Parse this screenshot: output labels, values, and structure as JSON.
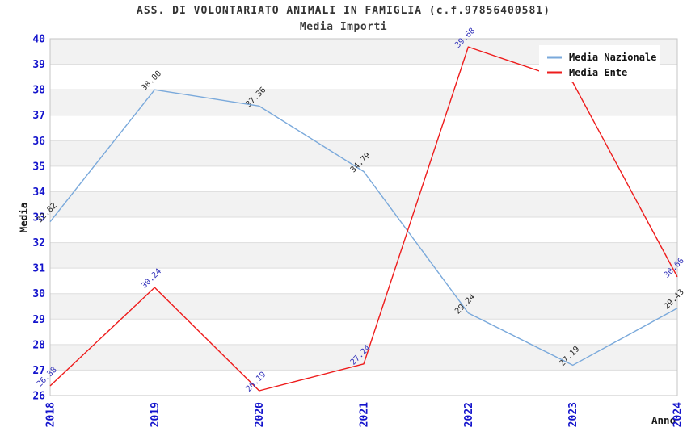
{
  "chart_data": {
    "type": "line",
    "title": "ASS. DI VOLONTARIATO ANIMALI IN FAMIGLIA (c.f.97856400581)",
    "subtitle": "Media Importi",
    "xlabel": "Anno",
    "ylabel": "Media",
    "x_categories": [
      "2018",
      "2019",
      "2020",
      "2021",
      "2022",
      "2023",
      "2024"
    ],
    "ylim": [
      26,
      40
    ],
    "y_ticks": [
      26,
      27,
      28,
      29,
      30,
      31,
      32,
      33,
      34,
      35,
      36,
      37,
      38,
      39,
      40
    ],
    "grid": "alternating horizontal gray bands, gridline each unit",
    "legend_position": "top-right",
    "series": [
      {
        "name": "Media Nazionale",
        "color": "#7aa9db",
        "label_color": "#2a2a2a",
        "values": [
          32.82,
          38.0,
          37.36,
          34.79,
          29.24,
          27.19,
          29.43
        ],
        "point_labels": [
          "32.82",
          "38.00",
          "37.36",
          "34.79",
          "29.24",
          "27.19",
          "29.43"
        ]
      },
      {
        "name": "Media Ente",
        "color": "#ee1c1c",
        "label_color": "#3535bb",
        "values": [
          26.38,
          30.24,
          26.19,
          27.24,
          39.68,
          38.29,
          30.66
        ],
        "point_labels": [
          "26.38",
          "30.24",
          "26.19",
          "27.24",
          "39.68",
          "",
          "30.66"
        ]
      }
    ]
  },
  "colors": {
    "background": "#ffffff",
    "band": "#f2f2f2",
    "gridline": "#dddddd",
    "plot_border": "#c4c4c4",
    "tick_label": "#1414cc",
    "title": "#333333",
    "legend_text": "#111111",
    "legend_background": "#ffffff"
  }
}
